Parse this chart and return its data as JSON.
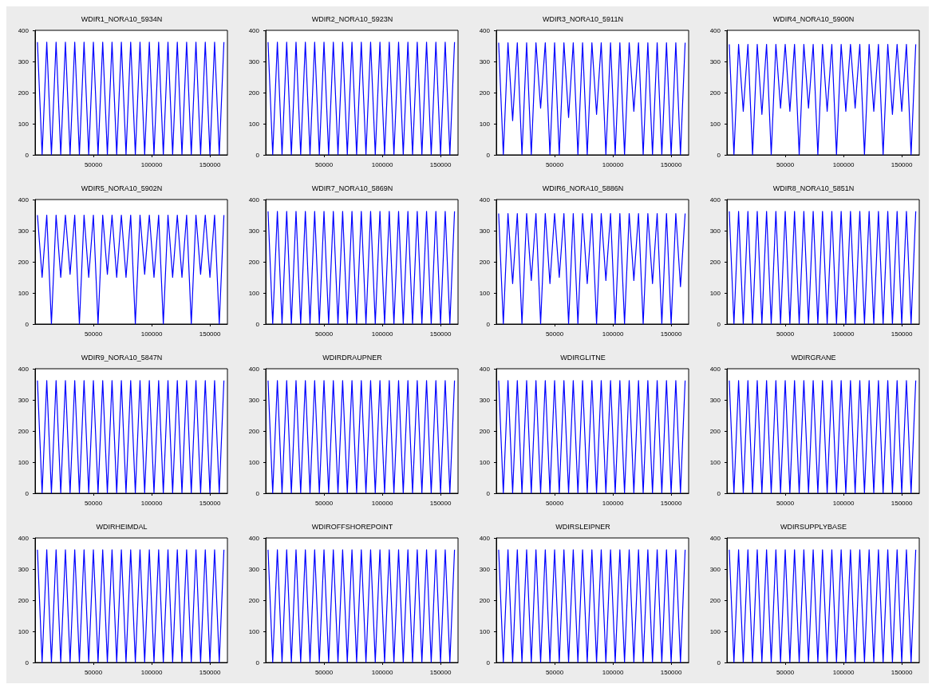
{
  "chart_data": [
    {
      "type": "line",
      "title": "WDIR1_NORA10_5934N",
      "color": "#0000ff",
      "xlim": [
        0,
        165000
      ],
      "xticks": [
        50000,
        100000,
        150000
      ],
      "ylim": [
        0,
        400
      ],
      "yticks": [
        0,
        100,
        200,
        300,
        400
      ],
      "grid": false,
      "x": [
        2000,
        6000,
        10000,
        14000,
        18000,
        22000,
        26000,
        30000,
        34000,
        38000,
        42000,
        46000,
        50000,
        54000,
        58000,
        62000,
        66000,
        70000,
        74000,
        78000,
        82000,
        86000,
        90000,
        94000,
        98000,
        102000,
        106000,
        110000,
        114000,
        118000,
        122000,
        126000,
        130000,
        134000,
        138000,
        142000,
        146000,
        150000,
        154000,
        158000,
        162000
      ],
      "values": [
        362,
        0,
        362,
        0,
        362,
        0,
        362,
        0,
        362,
        0,
        362,
        0,
        362,
        0,
        362,
        0,
        362,
        0,
        362,
        0,
        362,
        0,
        362,
        0,
        362,
        0,
        362,
        0,
        362,
        0,
        362,
        0,
        362,
        0,
        362,
        0,
        362,
        0,
        362,
        0,
        362
      ]
    },
    {
      "type": "line",
      "title": "WDIR2_NORA10_5923N",
      "color": "#0000ff",
      "xlim": [
        0,
        165000
      ],
      "xticks": [
        50000,
        100000,
        150000
      ],
      "ylim": [
        0,
        400
      ],
      "yticks": [
        0,
        100,
        200,
        300,
        400
      ],
      "grid": false,
      "x": [
        2000,
        6000,
        10000,
        14000,
        18000,
        22000,
        26000,
        30000,
        34000,
        38000,
        42000,
        46000,
        50000,
        54000,
        58000,
        62000,
        66000,
        70000,
        74000,
        78000,
        82000,
        86000,
        90000,
        94000,
        98000,
        102000,
        106000,
        110000,
        114000,
        118000,
        122000,
        126000,
        130000,
        134000,
        138000,
        142000,
        146000,
        150000,
        154000,
        158000,
        162000
      ],
      "values": [
        362,
        0,
        362,
        0,
        362,
        0,
        362,
        0,
        362,
        0,
        362,
        0,
        362,
        0,
        362,
        0,
        362,
        0,
        362,
        0,
        362,
        0,
        362,
        0,
        362,
        0,
        362,
        0,
        362,
        0,
        362,
        0,
        362,
        0,
        362,
        0,
        362,
        0,
        362,
        0,
        362
      ]
    },
    {
      "type": "line",
      "title": "WDIR3_NORA10_5911N",
      "color": "#0000ff",
      "xlim": [
        0,
        165000
      ],
      "xticks": [
        50000,
        100000,
        150000
      ],
      "ylim": [
        0,
        400
      ],
      "yticks": [
        0,
        100,
        200,
        300,
        400
      ],
      "grid": false,
      "x": [
        2000,
        6000,
        10000,
        14000,
        18000,
        22000,
        26000,
        30000,
        34000,
        38000,
        42000,
        46000,
        50000,
        54000,
        58000,
        62000,
        66000,
        70000,
        74000,
        78000,
        82000,
        86000,
        90000,
        94000,
        98000,
        102000,
        106000,
        110000,
        114000,
        118000,
        122000,
        126000,
        130000,
        134000,
        138000,
        142000,
        146000,
        150000,
        154000,
        158000,
        162000
      ],
      "values": [
        360,
        0,
        360,
        110,
        360,
        0,
        360,
        0,
        360,
        150,
        360,
        0,
        360,
        0,
        360,
        120,
        360,
        0,
        360,
        0,
        360,
        130,
        360,
        0,
        360,
        0,
        360,
        0,
        360,
        140,
        360,
        0,
        360,
        0,
        360,
        0,
        360,
        0,
        360,
        0,
        360
      ]
    },
    {
      "type": "line",
      "title": "WDIR4_NORA10_5900N",
      "color": "#0000ff",
      "xlim": [
        0,
        165000
      ],
      "xticks": [
        50000,
        100000,
        150000
      ],
      "ylim": [
        0,
        400
      ],
      "yticks": [
        0,
        100,
        200,
        300,
        400
      ],
      "grid": false,
      "x": [
        2000,
        6000,
        10000,
        14000,
        18000,
        22000,
        26000,
        30000,
        34000,
        38000,
        42000,
        46000,
        50000,
        54000,
        58000,
        62000,
        66000,
        70000,
        74000,
        78000,
        82000,
        86000,
        90000,
        94000,
        98000,
        102000,
        106000,
        110000,
        114000,
        118000,
        122000,
        126000,
        130000,
        134000,
        138000,
        142000,
        146000,
        150000,
        154000,
        158000,
        162000
      ],
      "values": [
        355,
        0,
        355,
        140,
        355,
        0,
        355,
        130,
        355,
        0,
        355,
        150,
        355,
        140,
        355,
        0,
        355,
        150,
        355,
        0,
        355,
        140,
        355,
        0,
        355,
        140,
        355,
        150,
        355,
        0,
        355,
        140,
        355,
        0,
        355,
        130,
        355,
        140,
        355,
        0,
        355
      ]
    },
    {
      "type": "line",
      "title": "WDIR5_NORA10_5902N",
      "color": "#0000ff",
      "xlim": [
        0,
        165000
      ],
      "xticks": [
        50000,
        100000,
        150000
      ],
      "ylim": [
        0,
        400
      ],
      "yticks": [
        0,
        100,
        200,
        300,
        400
      ],
      "grid": false,
      "x": [
        2000,
        6000,
        10000,
        14000,
        18000,
        22000,
        26000,
        30000,
        34000,
        38000,
        42000,
        46000,
        50000,
        54000,
        58000,
        62000,
        66000,
        70000,
        74000,
        78000,
        82000,
        86000,
        90000,
        94000,
        98000,
        102000,
        106000,
        110000,
        114000,
        118000,
        122000,
        126000,
        130000,
        134000,
        138000,
        142000,
        146000,
        150000,
        154000,
        158000,
        162000
      ],
      "values": [
        350,
        150,
        350,
        0,
        350,
        150,
        350,
        160,
        350,
        0,
        350,
        150,
        350,
        0,
        350,
        160,
        350,
        150,
        350,
        150,
        350,
        0,
        350,
        160,
        350,
        150,
        350,
        0,
        350,
        150,
        350,
        150,
        350,
        0,
        350,
        160,
        350,
        150,
        350,
        0,
        350
      ]
    },
    {
      "type": "line",
      "title": "WDIR7_NORA10_5869N",
      "color": "#0000ff",
      "xlim": [
        0,
        165000
      ],
      "xticks": [
        50000,
        100000,
        150000
      ],
      "ylim": [
        0,
        400
      ],
      "yticks": [
        0,
        100,
        200,
        300,
        400
      ],
      "grid": false,
      "x": [
        2000,
        6000,
        10000,
        14000,
        18000,
        22000,
        26000,
        30000,
        34000,
        38000,
        42000,
        46000,
        50000,
        54000,
        58000,
        62000,
        66000,
        70000,
        74000,
        78000,
        82000,
        86000,
        90000,
        94000,
        98000,
        102000,
        106000,
        110000,
        114000,
        118000,
        122000,
        126000,
        130000,
        134000,
        138000,
        142000,
        146000,
        150000,
        154000,
        158000,
        162000
      ],
      "values": [
        362,
        0,
        362,
        0,
        362,
        0,
        362,
        0,
        362,
        0,
        362,
        0,
        362,
        0,
        362,
        0,
        362,
        0,
        362,
        0,
        362,
        0,
        362,
        0,
        362,
        0,
        362,
        0,
        362,
        0,
        362,
        0,
        362,
        0,
        362,
        0,
        362,
        0,
        362,
        0,
        362
      ]
    },
    {
      "type": "line",
      "title": "WDIR6_NORA10_5886N",
      "color": "#0000ff",
      "xlim": [
        0,
        165000
      ],
      "xticks": [
        50000,
        100000,
        150000
      ],
      "ylim": [
        0,
        400
      ],
      "yticks": [
        0,
        100,
        200,
        300,
        400
      ],
      "grid": false,
      "x": [
        2000,
        6000,
        10000,
        14000,
        18000,
        22000,
        26000,
        30000,
        34000,
        38000,
        42000,
        46000,
        50000,
        54000,
        58000,
        62000,
        66000,
        70000,
        74000,
        78000,
        82000,
        86000,
        90000,
        94000,
        98000,
        102000,
        106000,
        110000,
        114000,
        118000,
        122000,
        126000,
        130000,
        134000,
        138000,
        142000,
        146000,
        150000,
        154000,
        158000,
        162000
      ],
      "values": [
        355,
        0,
        355,
        130,
        355,
        0,
        355,
        140,
        355,
        0,
        355,
        130,
        355,
        150,
        355,
        0,
        355,
        0,
        355,
        130,
        355,
        0,
        355,
        140,
        355,
        0,
        355,
        0,
        355,
        140,
        355,
        0,
        355,
        130,
        355,
        0,
        355,
        0,
        355,
        120,
        355
      ]
    },
    {
      "type": "line",
      "title": "WDIR8_NORA10_5851N",
      "color": "#0000ff",
      "xlim": [
        0,
        165000
      ],
      "xticks": [
        50000,
        100000,
        150000
      ],
      "ylim": [
        0,
        400
      ],
      "yticks": [
        0,
        100,
        200,
        300,
        400
      ],
      "grid": false,
      "x": [
        2000,
        6000,
        10000,
        14000,
        18000,
        22000,
        26000,
        30000,
        34000,
        38000,
        42000,
        46000,
        50000,
        54000,
        58000,
        62000,
        66000,
        70000,
        74000,
        78000,
        82000,
        86000,
        90000,
        94000,
        98000,
        102000,
        106000,
        110000,
        114000,
        118000,
        122000,
        126000,
        130000,
        134000,
        138000,
        142000,
        146000,
        150000,
        154000,
        158000,
        162000
      ],
      "values": [
        362,
        0,
        362,
        0,
        362,
        0,
        362,
        0,
        362,
        0,
        362,
        0,
        362,
        0,
        362,
        0,
        362,
        0,
        362,
        0,
        362,
        0,
        362,
        0,
        362,
        0,
        362,
        0,
        362,
        0,
        362,
        0,
        362,
        0,
        362,
        0,
        362,
        0,
        362,
        0,
        362
      ]
    },
    {
      "type": "line",
      "title": "WDIR9_NORA10_5847N",
      "color": "#0000ff",
      "xlim": [
        0,
        165000
      ],
      "xticks": [
        50000,
        100000,
        150000
      ],
      "ylim": [
        0,
        400
      ],
      "yticks": [
        0,
        100,
        200,
        300,
        400
      ],
      "grid": false,
      "x": [
        2000,
        6000,
        10000,
        14000,
        18000,
        22000,
        26000,
        30000,
        34000,
        38000,
        42000,
        46000,
        50000,
        54000,
        58000,
        62000,
        66000,
        70000,
        74000,
        78000,
        82000,
        86000,
        90000,
        94000,
        98000,
        102000,
        106000,
        110000,
        114000,
        118000,
        122000,
        126000,
        130000,
        134000,
        138000,
        142000,
        146000,
        150000,
        154000,
        158000,
        162000
      ],
      "values": [
        362,
        0,
        362,
        0,
        362,
        0,
        362,
        0,
        362,
        0,
        362,
        0,
        362,
        0,
        362,
        0,
        362,
        0,
        362,
        0,
        362,
        0,
        362,
        0,
        362,
        0,
        362,
        0,
        362,
        0,
        362,
        0,
        362,
        0,
        362,
        0,
        362,
        0,
        362,
        0,
        362
      ]
    },
    {
      "type": "line",
      "title": "WDIRDRAUPNER",
      "color": "#0000ff",
      "xlim": [
        0,
        165000
      ],
      "xticks": [
        50000,
        100000,
        150000
      ],
      "ylim": [
        0,
        400
      ],
      "yticks": [
        0,
        100,
        200,
        300,
        400
      ],
      "grid": false,
      "x": [
        2000,
        6000,
        10000,
        14000,
        18000,
        22000,
        26000,
        30000,
        34000,
        38000,
        42000,
        46000,
        50000,
        54000,
        58000,
        62000,
        66000,
        70000,
        74000,
        78000,
        82000,
        86000,
        90000,
        94000,
        98000,
        102000,
        106000,
        110000,
        114000,
        118000,
        122000,
        126000,
        130000,
        134000,
        138000,
        142000,
        146000,
        150000,
        154000,
        158000,
        162000
      ],
      "values": [
        362,
        0,
        362,
        0,
        362,
        0,
        362,
        0,
        362,
        0,
        362,
        0,
        362,
        0,
        362,
        0,
        362,
        0,
        362,
        0,
        362,
        0,
        362,
        0,
        362,
        0,
        362,
        0,
        362,
        0,
        362,
        0,
        362,
        0,
        362,
        0,
        362,
        0,
        362,
        0,
        362
      ]
    },
    {
      "type": "line",
      "title": "WDIRGLITNE",
      "color": "#0000ff",
      "xlim": [
        0,
        165000
      ],
      "xticks": [
        50000,
        100000,
        150000
      ],
      "ylim": [
        0,
        400
      ],
      "yticks": [
        0,
        100,
        200,
        300,
        400
      ],
      "grid": false,
      "x": [
        2000,
        6000,
        10000,
        14000,
        18000,
        22000,
        26000,
        30000,
        34000,
        38000,
        42000,
        46000,
        50000,
        54000,
        58000,
        62000,
        66000,
        70000,
        74000,
        78000,
        82000,
        86000,
        90000,
        94000,
        98000,
        102000,
        106000,
        110000,
        114000,
        118000,
        122000,
        126000,
        130000,
        134000,
        138000,
        142000,
        146000,
        150000,
        154000,
        158000,
        162000
      ],
      "values": [
        362,
        0,
        362,
        0,
        362,
        0,
        362,
        0,
        362,
        0,
        362,
        0,
        362,
        0,
        362,
        0,
        362,
        0,
        362,
        0,
        362,
        0,
        362,
        0,
        362,
        0,
        362,
        0,
        362,
        0,
        362,
        0,
        362,
        0,
        362,
        0,
        362,
        0,
        362,
        0,
        362
      ]
    },
    {
      "type": "line",
      "title": "WDIRGRANE",
      "color": "#0000ff",
      "xlim": [
        0,
        165000
      ],
      "xticks": [
        50000,
        100000,
        150000
      ],
      "ylim": [
        0,
        400
      ],
      "yticks": [
        0,
        100,
        200,
        300,
        400
      ],
      "grid": false,
      "x": [
        2000,
        6000,
        10000,
        14000,
        18000,
        22000,
        26000,
        30000,
        34000,
        38000,
        42000,
        46000,
        50000,
        54000,
        58000,
        62000,
        66000,
        70000,
        74000,
        78000,
        82000,
        86000,
        90000,
        94000,
        98000,
        102000,
        106000,
        110000,
        114000,
        118000,
        122000,
        126000,
        130000,
        134000,
        138000,
        142000,
        146000,
        150000,
        154000,
        158000,
        162000
      ],
      "values": [
        362,
        0,
        362,
        0,
        362,
        0,
        362,
        0,
        362,
        0,
        362,
        0,
        362,
        0,
        362,
        0,
        362,
        0,
        362,
        0,
        362,
        0,
        362,
        0,
        362,
        0,
        362,
        0,
        362,
        0,
        362,
        0,
        362,
        0,
        362,
        0,
        362,
        0,
        362,
        0,
        362
      ]
    },
    {
      "type": "line",
      "title": "WDIRHEIMDAL",
      "color": "#0000ff",
      "xlim": [
        0,
        165000
      ],
      "xticks": [
        50000,
        100000,
        150000
      ],
      "ylim": [
        0,
        400
      ],
      "yticks": [
        0,
        100,
        200,
        300,
        400
      ],
      "grid": false,
      "x": [
        2000,
        6000,
        10000,
        14000,
        18000,
        22000,
        26000,
        30000,
        34000,
        38000,
        42000,
        46000,
        50000,
        54000,
        58000,
        62000,
        66000,
        70000,
        74000,
        78000,
        82000,
        86000,
        90000,
        94000,
        98000,
        102000,
        106000,
        110000,
        114000,
        118000,
        122000,
        126000,
        130000,
        134000,
        138000,
        142000,
        146000,
        150000,
        154000,
        158000,
        162000
      ],
      "values": [
        362,
        0,
        362,
        0,
        362,
        0,
        362,
        0,
        362,
        0,
        362,
        0,
        362,
        0,
        362,
        0,
        362,
        0,
        362,
        0,
        362,
        0,
        362,
        0,
        362,
        0,
        362,
        0,
        362,
        0,
        362,
        0,
        362,
        0,
        362,
        0,
        362,
        0,
        362,
        0,
        362
      ]
    },
    {
      "type": "line",
      "title": "WDIROFFSHOREPOINT",
      "color": "#0000ff",
      "xlim": [
        0,
        165000
      ],
      "xticks": [
        50000,
        100000,
        150000
      ],
      "ylim": [
        0,
        400
      ],
      "yticks": [
        0,
        100,
        200,
        300,
        400
      ],
      "grid": false,
      "x": [
        2000,
        6000,
        10000,
        14000,
        18000,
        22000,
        26000,
        30000,
        34000,
        38000,
        42000,
        46000,
        50000,
        54000,
        58000,
        62000,
        66000,
        70000,
        74000,
        78000,
        82000,
        86000,
        90000,
        94000,
        98000,
        102000,
        106000,
        110000,
        114000,
        118000,
        122000,
        126000,
        130000,
        134000,
        138000,
        142000,
        146000,
        150000,
        154000,
        158000,
        162000
      ],
      "values": [
        362,
        0,
        362,
        0,
        362,
        0,
        362,
        0,
        362,
        0,
        362,
        0,
        362,
        0,
        362,
        0,
        362,
        0,
        362,
        0,
        362,
        0,
        362,
        0,
        362,
        0,
        362,
        0,
        362,
        0,
        362,
        0,
        362,
        0,
        362,
        0,
        362,
        0,
        362,
        0,
        362
      ]
    },
    {
      "type": "line",
      "title": "WDIRSLEIPNER",
      "color": "#0000ff",
      "xlim": [
        0,
        165000
      ],
      "xticks": [
        50000,
        100000,
        150000
      ],
      "ylim": [
        0,
        400
      ],
      "yticks": [
        0,
        100,
        200,
        300,
        400
      ],
      "grid": false,
      "x": [
        2000,
        6000,
        10000,
        14000,
        18000,
        22000,
        26000,
        30000,
        34000,
        38000,
        42000,
        46000,
        50000,
        54000,
        58000,
        62000,
        66000,
        70000,
        74000,
        78000,
        82000,
        86000,
        90000,
        94000,
        98000,
        102000,
        106000,
        110000,
        114000,
        118000,
        122000,
        126000,
        130000,
        134000,
        138000,
        142000,
        146000,
        150000,
        154000,
        158000,
        162000
      ],
      "values": [
        362,
        0,
        362,
        0,
        362,
        0,
        362,
        0,
        362,
        0,
        362,
        0,
        362,
        0,
        362,
        0,
        362,
        0,
        362,
        0,
        362,
        0,
        362,
        0,
        362,
        0,
        362,
        0,
        362,
        0,
        362,
        0,
        362,
        0,
        362,
        0,
        362,
        0,
        362,
        0,
        362
      ]
    },
    {
      "type": "line",
      "title": "WDIRSUPPLYBASE",
      "color": "#0000ff",
      "xlim": [
        0,
        165000
      ],
      "xticks": [
        50000,
        100000,
        150000
      ],
      "ylim": [
        0,
        400
      ],
      "yticks": [
        0,
        100,
        200,
        300,
        400
      ],
      "grid": false,
      "x": [
        2000,
        6000,
        10000,
        14000,
        18000,
        22000,
        26000,
        30000,
        34000,
        38000,
        42000,
        46000,
        50000,
        54000,
        58000,
        62000,
        66000,
        70000,
        74000,
        78000,
        82000,
        86000,
        90000,
        94000,
        98000,
        102000,
        106000,
        110000,
        114000,
        118000,
        122000,
        126000,
        130000,
        134000,
        138000,
        142000,
        146000,
        150000,
        154000,
        158000,
        162000
      ],
      "values": [
        362,
        0,
        362,
        0,
        362,
        0,
        362,
        0,
        362,
        0,
        362,
        0,
        362,
        0,
        362,
        0,
        362,
        0,
        362,
        0,
        362,
        0,
        362,
        0,
        362,
        0,
        362,
        0,
        362,
        0,
        362,
        0,
        362,
        0,
        362,
        0,
        362,
        0,
        362,
        0,
        362
      ]
    }
  ]
}
